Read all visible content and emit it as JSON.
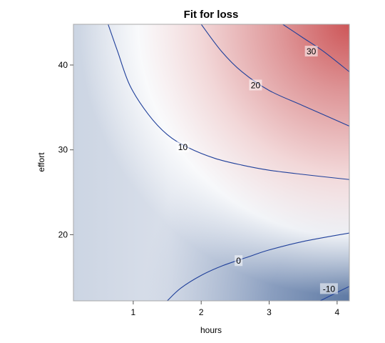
{
  "chart_data": {
    "type": "heatmap",
    "subtype": "contour",
    "title": "Fit for loss",
    "xlabel": "hours",
    "ylabel": "effort",
    "xlim": [
      0.12,
      4.18
    ],
    "ylim": [
      12.2,
      44.8
    ],
    "xticks": [
      1,
      2,
      3,
      4
    ],
    "yticks": [
      20,
      30,
      40
    ],
    "grid": false,
    "legend": "none",
    "surface": {
      "description": "fitted loss as a function of hours and effort; low values blue, mid white, high red",
      "colormap": [
        "#5f7aa4",
        "#ffffff",
        "#cf5a5e"
      ],
      "value_range": [
        -14,
        36
      ]
    },
    "contours": [
      {
        "level": 30,
        "label": "30",
        "label_at": [
          3.62,
          41.6
        ],
        "points": [
          [
            3.2,
            44.8
          ],
          [
            3.5,
            43.2
          ],
          [
            3.8,
            41.6
          ],
          [
            4.18,
            39.2
          ]
        ]
      },
      {
        "level": 20,
        "label": "20",
        "label_at": [
          2.8,
          37.6
        ],
        "points": [
          [
            2.0,
            44.8
          ],
          [
            2.3,
            41.6
          ],
          [
            2.6,
            39.2
          ],
          [
            3.0,
            37.0
          ],
          [
            3.5,
            35.2
          ],
          [
            4.18,
            32.8
          ]
        ]
      },
      {
        "level": 10,
        "label": "10",
        "label_at": [
          1.73,
          30.3
        ],
        "points": [
          [
            0.63,
            44.8
          ],
          [
            0.77,
            41.6
          ],
          [
            0.95,
            37.6
          ],
          [
            1.22,
            34.2
          ],
          [
            1.5,
            31.8
          ],
          [
            1.8,
            30.3
          ],
          [
            2.2,
            29.0
          ],
          [
            2.6,
            28.2
          ],
          [
            3.0,
            27.6
          ],
          [
            3.5,
            27.1
          ],
          [
            4.18,
            26.5
          ]
        ]
      },
      {
        "level": 0,
        "label": "0",
        "label_at": [
          2.55,
          16.9
        ],
        "points": [
          [
            1.5,
            12.2
          ],
          [
            1.7,
            13.7
          ],
          [
            2.0,
            15.2
          ],
          [
            2.3,
            16.3
          ],
          [
            2.7,
            17.4
          ],
          [
            3.0,
            18.2
          ],
          [
            3.5,
            19.2
          ],
          [
            4.18,
            20.2
          ]
        ]
      },
      {
        "level": -10,
        "label": "-10",
        "label_at": [
          3.88,
          13.6
        ],
        "points": [
          [
            3.75,
            12.2
          ],
          [
            3.95,
            13.0
          ],
          [
            4.18,
            13.9
          ]
        ]
      }
    ]
  }
}
